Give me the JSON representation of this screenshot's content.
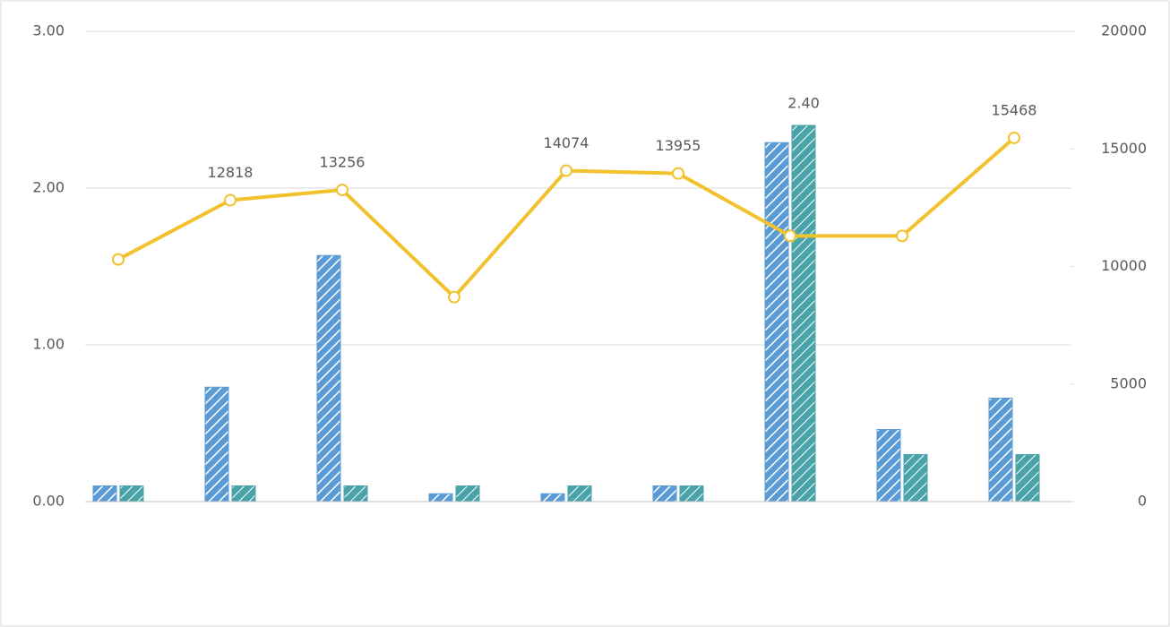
{
  "chart_data": {
    "type": "bar-line",
    "categories": [
      null,
      null,
      null,
      null,
      null,
      null,
      null,
      null,
      null
    ],
    "series": [
      {
        "type": "bar",
        "color": "#5b9bd5",
        "values": [
          0.1,
          0.73,
          1.57,
          0.05,
          0.05,
          0.1,
          2.29,
          0.46,
          0.66
        ]
      },
      {
        "type": "bar",
        "color": "#4aa3a8",
        "values": [
          0.1,
          0.1,
          0.1,
          0.1,
          0.1,
          0.1,
          2.4,
          0.3,
          0.3
        ],
        "value_labels": [
          null,
          null,
          null,
          null,
          null,
          null,
          "2.40",
          null,
          null
        ]
      },
      {
        "type": "line",
        "axis": "y2",
        "color": "#f2c12e",
        "values": [
          10300,
          12818,
          13256,
          8700,
          14074,
          13955,
          11300,
          11300,
          15468
        ],
        "value_labels": [
          null,
          "12818",
          "13256",
          null,
          "14074",
          "13955",
          null,
          null,
          "15468"
        ]
      }
    ],
    "ylim": [
      0,
      3
    ],
    "yticks": [
      {
        "value": 0,
        "label": "0.00"
      },
      {
        "value": 1,
        "label": "1.00"
      },
      {
        "value": 2,
        "label": "2.00"
      },
      {
        "value": 3,
        "label": "3.00"
      }
    ],
    "y2lim": [
      0,
      20000
    ],
    "y2ticks": [
      0,
      5000,
      10000,
      15000,
      20000
    ],
    "grid": true
  }
}
